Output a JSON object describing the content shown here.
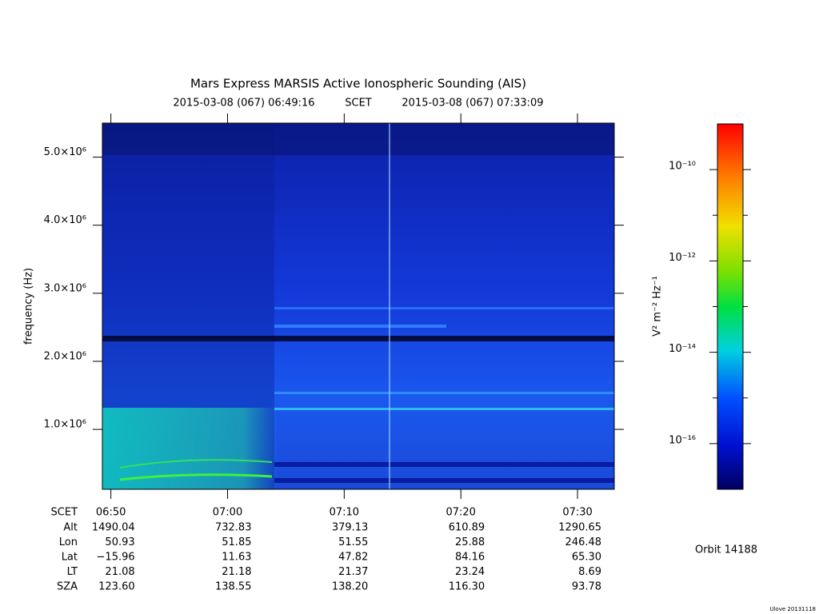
{
  "chart_data": {
    "type": "spectrogram",
    "title": "Mars Express MARSIS Active Ionospheric Sounding (AIS)",
    "start_time": "2015-03-08 (067) 06:49:16",
    "time_label": "SCET",
    "end_time": "2015-03-08 (067) 07:33:09",
    "ylabel": "frequency (Hz)",
    "xlim": [
      409.27,
      453.15
    ],
    "xticks": [
      {
        "value": 410,
        "label": "06:50"
      },
      {
        "value": 420,
        "label": "07:00"
      },
      {
        "value": 430,
        "label": "07:10"
      },
      {
        "value": 440,
        "label": "07:20"
      },
      {
        "value": 450,
        "label": "07:30"
      }
    ],
    "ylim": [
      120000,
      5500000
    ],
    "yticks": [
      {
        "value": 1000000,
        "label": "1.0×10⁶"
      },
      {
        "value": 2000000,
        "label": "2.0×10⁶"
      },
      {
        "value": 3000000,
        "label": "3.0×10⁶"
      },
      {
        "value": 4000000,
        "label": "4.0×10⁶"
      },
      {
        "value": 5000000,
        "label": "5.0×10⁶"
      }
    ],
    "colorbar": {
      "label": "V² m⁻² Hz⁻¹",
      "log": true,
      "lim": [
        1e-17,
        1e-09
      ],
      "ticks": [
        {
          "value": 1e-10,
          "label": "10⁻¹⁰"
        },
        {
          "value": 1e-12,
          "label": "10⁻¹²"
        },
        {
          "value": 1e-14,
          "label": "10⁻¹⁴"
        },
        {
          "value": 1e-16,
          "label": "10⁻¹⁶"
        }
      ],
      "minor_ticks": [
        1e-11,
        1e-13,
        1e-15
      ]
    },
    "ephemeris": {
      "time_row_label": "SCET",
      "rows": [
        {
          "label": "Alt",
          "values": [
            "1490.04",
            "732.83",
            "379.13",
            "610.89",
            "1290.65"
          ]
        },
        {
          "label": "Lon",
          "values": [
            "50.93",
            "51.85",
            "51.55",
            "25.88",
            "246.48"
          ]
        },
        {
          "label": "Lat",
          "values": [
            "−15.96",
            "11.63",
            "47.82",
            "84.16",
            "65.30"
          ]
        },
        {
          "label": "LT",
          "values": [
            "21.08",
            "21.18",
            "21.37",
            "23.24",
            "8.69"
          ]
        },
        {
          "label": "SZA",
          "values": [
            "123.60",
            "138.55",
            "138.20",
            "116.30",
            "93.78"
          ]
        }
      ]
    },
    "orbit": "Orbit 14188",
    "footer": "Ulove 20131118"
  }
}
